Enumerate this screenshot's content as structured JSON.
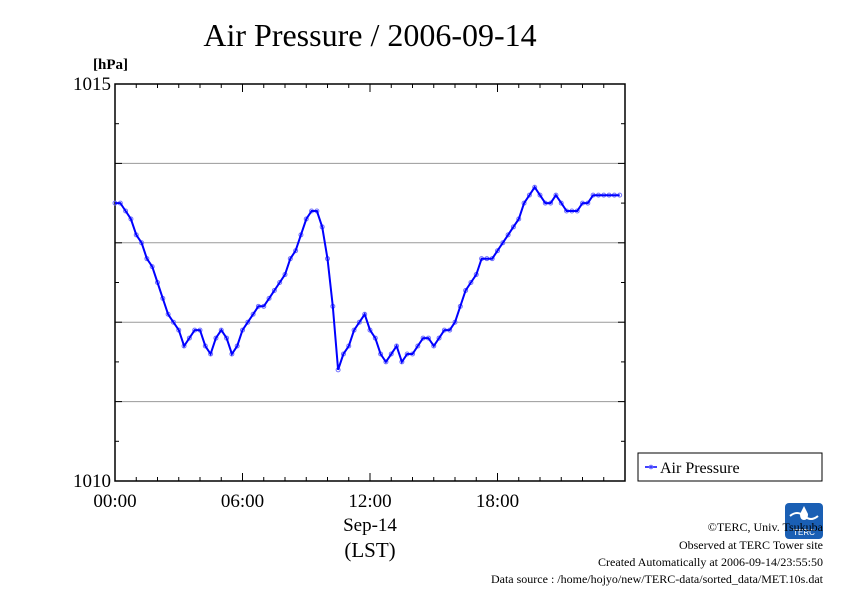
{
  "chart_data": {
    "type": "line",
    "title": "Air Pressure / 2006-09-14",
    "ylabel": "[hPa]",
    "xlabel_lines": [
      "Sep-14",
      "(LST)"
    ],
    "xlim": [
      0,
      24
    ],
    "ylim": [
      1010,
      1015
    ],
    "y_ticks": [
      "1015",
      "1010"
    ],
    "x_ticks": [
      "00:00",
      "06:00",
      "12:00",
      "18:00"
    ],
    "grid": true,
    "legend": "right",
    "series": [
      {
        "name": "Air Pressure",
        "color": "#0000ff",
        "x": [
          0.0,
          0.25,
          0.5,
          0.75,
          1.0,
          1.25,
          1.5,
          1.75,
          2.0,
          2.25,
          2.5,
          2.75,
          3.0,
          3.25,
          3.5,
          3.75,
          4.0,
          4.25,
          4.5,
          4.75,
          5.0,
          5.25,
          5.5,
          5.75,
          6.0,
          6.25,
          6.5,
          6.75,
          7.0,
          7.25,
          7.5,
          7.75,
          8.0,
          8.25,
          8.5,
          8.75,
          9.0,
          9.25,
          9.5,
          9.75,
          10.0,
          10.25,
          10.5,
          10.75,
          11.0,
          11.25,
          11.5,
          11.75,
          12.0,
          12.25,
          12.5,
          12.75,
          13.0,
          13.25,
          13.5,
          13.75,
          14.0,
          14.25,
          14.5,
          14.75,
          15.0,
          15.25,
          15.5,
          15.75,
          16.0,
          16.25,
          16.5,
          16.75,
          17.0,
          17.25,
          17.5,
          17.75,
          18.0,
          18.25,
          18.5,
          18.75,
          19.0,
          19.25,
          19.5,
          19.75,
          20.0,
          20.25,
          20.5,
          20.75,
          21.0,
          21.25,
          21.5,
          21.75,
          22.0,
          22.25,
          22.5,
          22.75,
          23.0,
          23.25,
          23.5,
          23.75
        ],
        "y": [
          1013.5,
          1013.5,
          1013.4,
          1013.3,
          1013.1,
          1013.0,
          1012.8,
          1012.7,
          1012.5,
          1012.3,
          1012.1,
          1012.0,
          1011.9,
          1011.7,
          1011.8,
          1011.9,
          1011.9,
          1011.7,
          1011.6,
          1011.8,
          1011.9,
          1011.8,
          1011.6,
          1011.7,
          1011.9,
          1012.0,
          1012.1,
          1012.2,
          1012.2,
          1012.3,
          1012.4,
          1012.5,
          1012.6,
          1012.8,
          1012.9,
          1013.1,
          1013.3,
          1013.4,
          1013.4,
          1013.2,
          1012.8,
          1012.2,
          1011.4,
          1011.6,
          1011.7,
          1011.9,
          1012.0,
          1012.1,
          1011.9,
          1011.8,
          1011.6,
          1011.5,
          1011.6,
          1011.7,
          1011.5,
          1011.6,
          1011.6,
          1011.7,
          1011.8,
          1011.8,
          1011.7,
          1011.8,
          1011.9,
          1011.9,
          1012.0,
          1012.2,
          1012.4,
          1012.5,
          1012.6,
          1012.8,
          1012.8,
          1012.8,
          1012.9,
          1013.0,
          1013.1,
          1013.2,
          1013.3,
          1013.5,
          1013.6,
          1013.7,
          1013.6,
          1013.5,
          1013.5,
          1013.6,
          1013.5,
          1013.4,
          1013.4,
          1013.4,
          1013.5,
          1013.5,
          1013.6,
          1013.6,
          1013.6,
          1013.6,
          1013.6,
          1013.6
        ]
      }
    ]
  },
  "credits": [
    "©TERC, Univ. Tsukuba",
    "Observed at TERC Tower site",
    "Created Automatically at 2006-09-14/23:55:50",
    "Data source : /home/hojyo/new/TERC-data/sorted_data/MET.10s.dat"
  ],
  "logo_text": "TERC"
}
